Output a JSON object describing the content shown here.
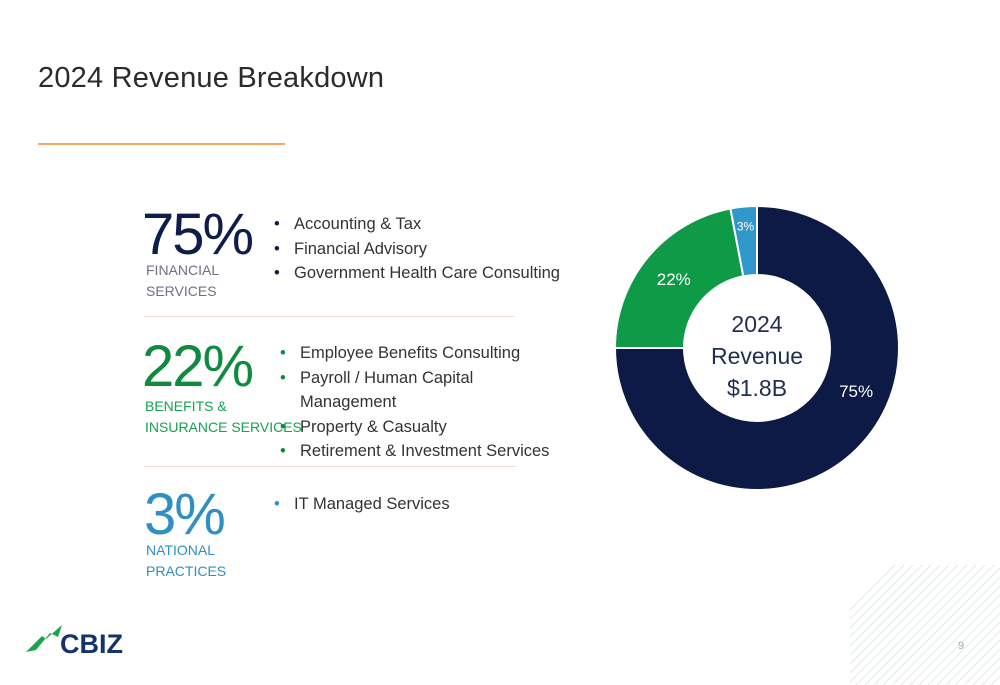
{
  "page": {
    "title": "2024 Revenue Breakdown",
    "page_number": "9"
  },
  "segments": [
    {
      "percent": "75%",
      "label_line1": "FINANCIAL",
      "label_line2": "SERVICES",
      "color": "#0f1d4a",
      "items": [
        "Accounting & Tax",
        "Financial Advisory",
        "Government Health Care Consulting"
      ]
    },
    {
      "percent": "22%",
      "label_line1": "BENEFITS &",
      "label_line2": "INSURANCE SERVICES",
      "color": "#0f8a3e",
      "items": [
        "Employee Benefits Consulting",
        "Payroll / Human Capital Management",
        "Property & Casualty",
        "Retirement & Investment Services"
      ]
    },
    {
      "percent": "3%",
      "label_line1": "NATIONAL",
      "label_line2": "PRACTICES",
      "color": "#2e8fc4",
      "items": [
        "IT Managed Services"
      ]
    }
  ],
  "chart_data": {
    "type": "pie",
    "donut": true,
    "center_text": [
      "2024",
      "Revenue",
      "$1.8B"
    ],
    "categories": [
      "Financial Services",
      "Benefits & Insurance Services",
      "National Practices"
    ],
    "values": [
      75,
      22,
      3
    ],
    "labels": [
      "75%",
      "22%",
      "3%"
    ],
    "colors": [
      "#0d1a45",
      "#0f9a48",
      "#2f97c9"
    ]
  },
  "logo": {
    "text": "CBIZ",
    "color": "#16326e",
    "accent": "#1aa34a"
  }
}
